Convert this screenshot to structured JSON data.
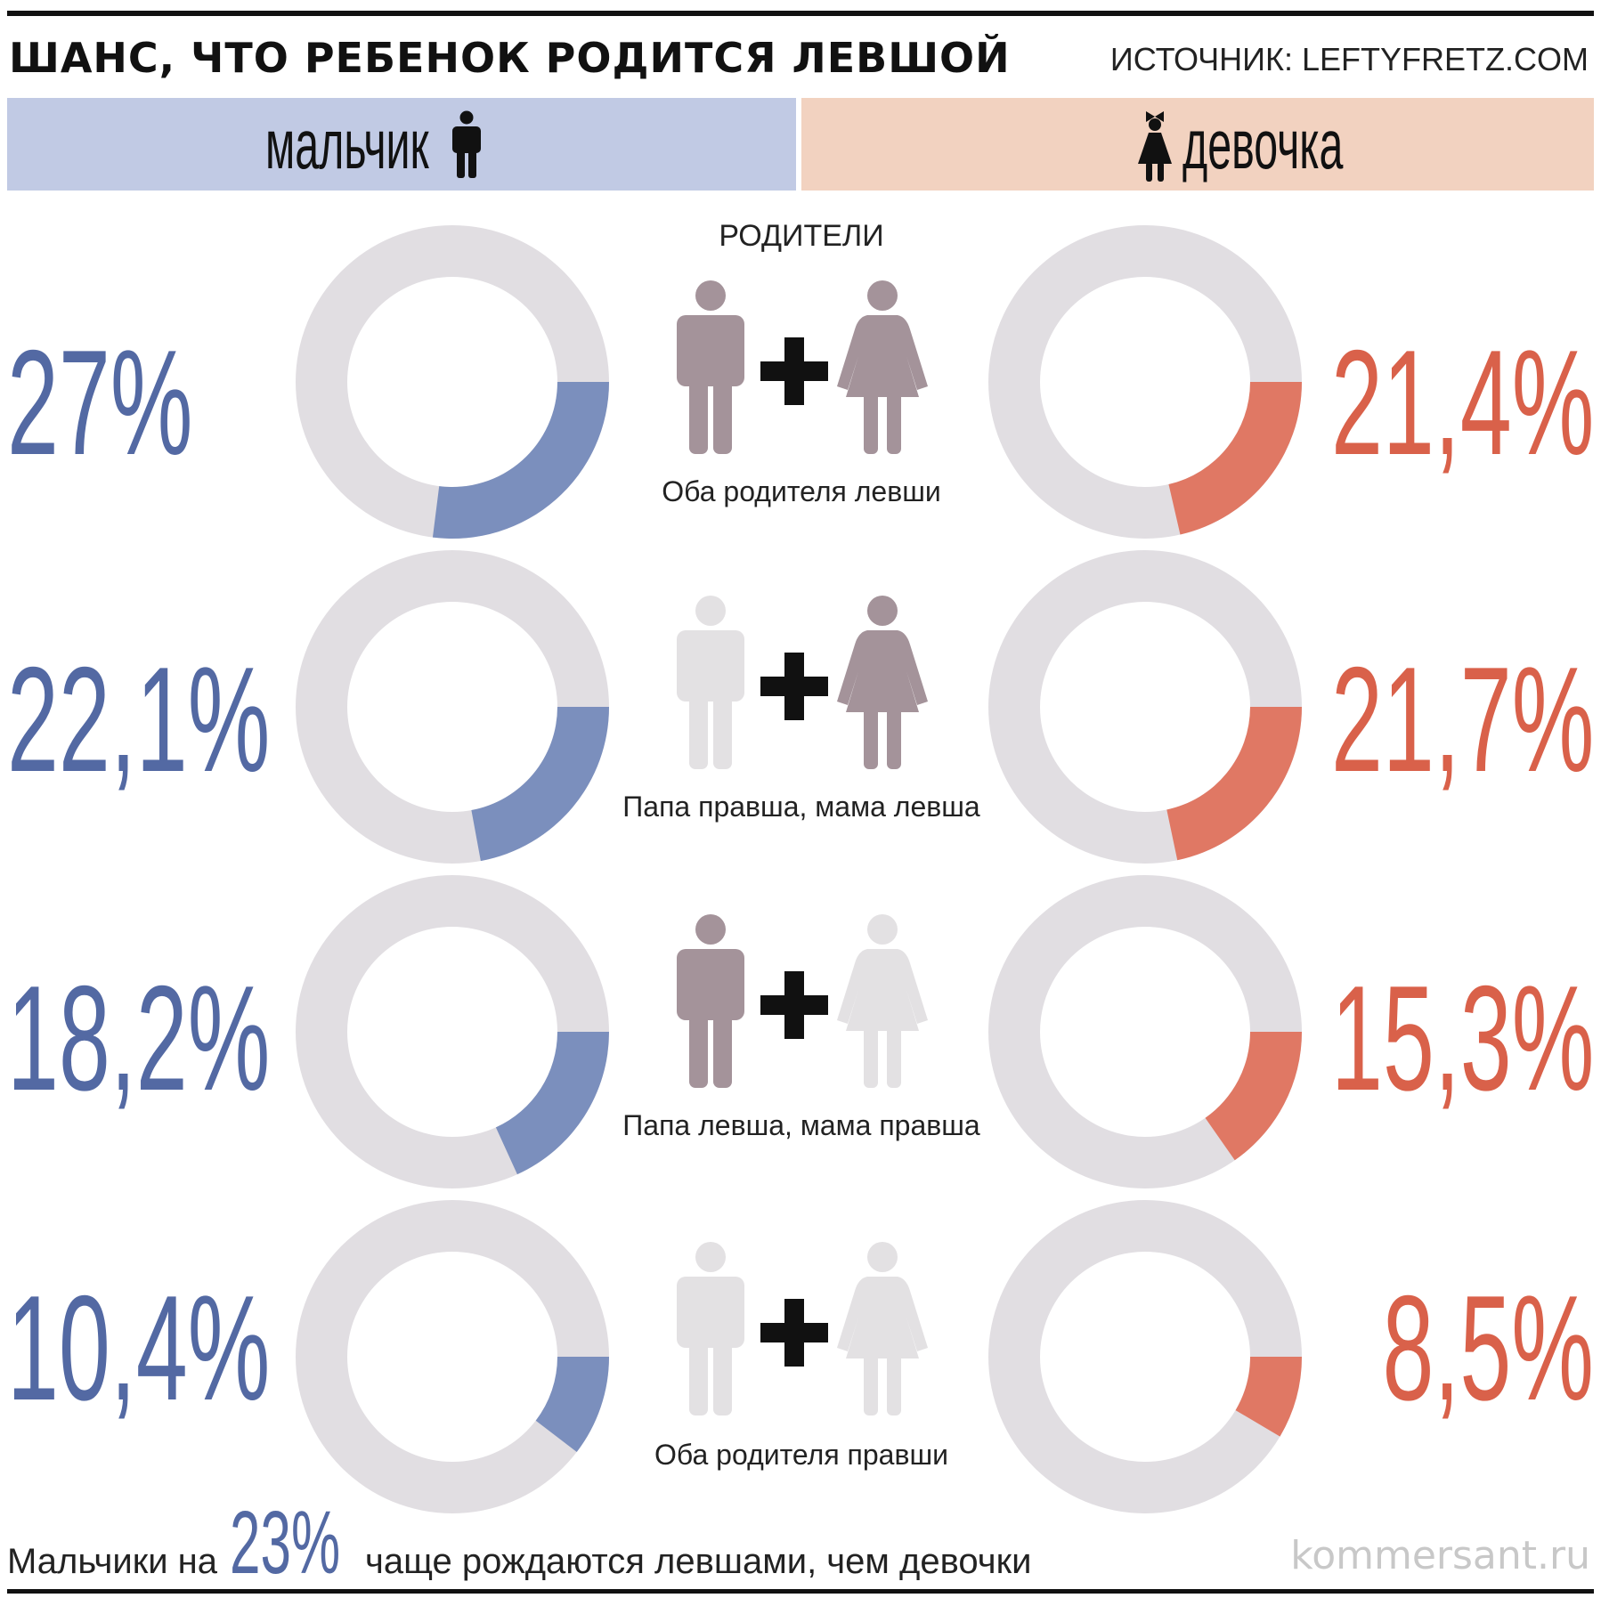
{
  "header": {
    "title": "ШАНС, ЧТО РЕБЕНОК РОДИТСЯ ЛЕВШОЙ",
    "source": "ИСТОЧНИК: LEFTYFRETZ.COM"
  },
  "bands": {
    "boy": "мальчик",
    "girl": "девочка"
  },
  "parents_heading": "РОДИТЕЛИ",
  "colors": {
    "boy": "#5369a3",
    "boy_arc": "#7b8fbd",
    "girl": "#d9614a",
    "girl_arc": "#e07864",
    "track": "#e1dee2",
    "parent_left": "#a4939a",
    "parent_right": "#e3e1e3",
    "plus": "#111111"
  },
  "icons": {
    "boy": "boy-icon",
    "girl": "girl-icon",
    "father": "man-icon",
    "mother": "woman-icon",
    "plus": "plus-icon"
  },
  "chart_data": {
    "type": "donut",
    "title": "ШАНС, ЧТО РЕБЕНОК РОДИТСЯ ЛЕВШОЙ",
    "unit": "%",
    "categories": [
      "Оба родителя левши",
      "Папа правша, мама левша",
      "Папа левша, мама правша",
      "Оба родителя правши"
    ],
    "parents_left_handed": [
      {
        "father": true,
        "mother": true
      },
      {
        "father": false,
        "mother": true
      },
      {
        "father": true,
        "mother": false
      },
      {
        "father": false,
        "mother": false
      }
    ],
    "series": [
      {
        "name": "мальчик",
        "values": [
          27,
          22.1,
          18.2,
          10.4
        ],
        "labels": [
          "27%",
          "22,1%",
          "18,2%",
          "10,4%"
        ]
      },
      {
        "name": "девочка",
        "values": [
          21.4,
          21.7,
          15.3,
          8.5
        ],
        "labels": [
          "21,4%",
          "21,7%",
          "15,3%",
          "8,5%"
        ]
      }
    ]
  },
  "footer": {
    "prefix": "Мальчики на",
    "highlight": "23%",
    "suffix": "чаще рождаются левшами, чем девочки",
    "brand": "kommersant.ru"
  }
}
